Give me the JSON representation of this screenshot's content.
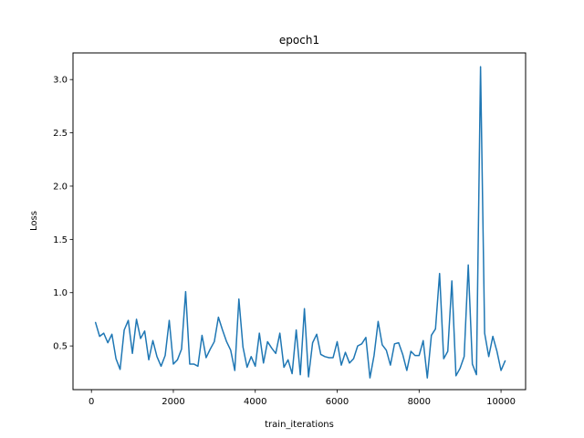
{
  "chart_data": {
    "type": "line",
    "title": "epoch1",
    "xlabel": "train_iterations",
    "ylabel": "Loss",
    "xlim": [
      -450,
      10600
    ],
    "ylim": [
      0.09,
      3.25
    ],
    "xticks": [
      0,
      2000,
      4000,
      6000,
      8000,
      10000
    ],
    "yticks": [
      0.5,
      1.0,
      1.5,
      2.0,
      2.5,
      3.0
    ],
    "xtick_labels": [
      "0",
      "2000",
      "4000",
      "6000",
      "8000",
      "10000"
    ],
    "ytick_labels": [
      "0.5",
      "1.0",
      "1.5",
      "2.0",
      "2.5",
      "3.0"
    ],
    "grid": false,
    "line_color": "#1f77b4",
    "series": [
      {
        "x": [
          100,
          200,
          300,
          400,
          500,
          600,
          700,
          800,
          900,
          1000,
          1100,
          1200,
          1300,
          1400,
          1500,
          1600,
          1700,
          1800,
          1900,
          2000,
          2100,
          2200,
          2300,
          2400,
          2500,
          2600,
          2700,
          2800,
          2900,
          3000,
          3100,
          3200,
          3300,
          3400,
          3500,
          3600,
          3700,
          3800,
          3900,
          4000,
          4100,
          4200,
          4300,
          4400,
          4500,
          4600,
          4700,
          4800,
          4900,
          5000,
          5100,
          5200,
          5300,
          5400,
          5500,
          5600,
          5700,
          5800,
          5900,
          6000,
          6100,
          6200,
          6300,
          6400,
          6500,
          6600,
          6700,
          6800,
          6900,
          7000,
          7100,
          7200,
          7300,
          7400,
          7500,
          7600,
          7700,
          7800,
          7900,
          8000,
          8100,
          8200,
          8300,
          8400,
          8500,
          8600,
          8700,
          8800,
          8900,
          9000,
          9100,
          9200,
          9300,
          9400,
          9500,
          9600,
          9700,
          9800,
          9900,
          10000,
          10100
        ],
        "y": [
          0.72,
          0.59,
          0.62,
          0.53,
          0.61,
          0.38,
          0.28,
          0.65,
          0.74,
          0.43,
          0.75,
          0.57,
          0.64,
          0.37,
          0.55,
          0.4,
          0.31,
          0.41,
          0.74,
          0.33,
          0.37,
          0.47,
          1.01,
          0.33,
          0.33,
          0.31,
          0.6,
          0.39,
          0.47,
          0.54,
          0.77,
          0.65,
          0.54,
          0.46,
          0.27,
          0.94,
          0.49,
          0.3,
          0.4,
          0.31,
          0.62,
          0.34,
          0.54,
          0.48,
          0.43,
          0.62,
          0.3,
          0.37,
          0.24,
          0.65,
          0.23,
          0.85,
          0.21,
          0.53,
          0.61,
          0.42,
          0.4,
          0.39,
          0.39,
          0.54,
          0.32,
          0.44,
          0.34,
          0.38,
          0.5,
          0.52,
          0.58,
          0.2,
          0.41,
          0.73,
          0.51,
          0.46,
          0.32,
          0.52,
          0.53,
          0.42,
          0.27,
          0.45,
          0.41,
          0.41,
          0.55,
          0.2,
          0.6,
          0.66,
          1.18,
          0.38,
          0.45,
          1.11,
          0.22,
          0.29,
          0.4,
          1.26,
          0.33,
          0.23,
          3.12,
          0.62,
          0.4,
          0.59,
          0.45,
          0.27,
          0.36
        ]
      }
    ]
  }
}
